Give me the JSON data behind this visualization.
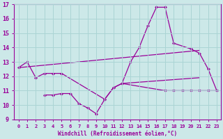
{
  "background_color": "#cce8e8",
  "line_color": "#990099",
  "grid_color": "#aad4d4",
  "xlabel": "Windchill (Refroidissement éolien,°C)",
  "ylim": [
    9,
    17
  ],
  "xlim": [
    -0.5,
    23.5
  ],
  "yticks": [
    9,
    10,
    11,
    12,
    13,
    14,
    15,
    16,
    17
  ],
  "xticks": [
    0,
    1,
    2,
    3,
    4,
    5,
    6,
    7,
    8,
    9,
    10,
    11,
    12,
    13,
    14,
    15,
    16,
    17,
    18,
    19,
    20,
    21,
    22,
    23
  ],
  "curve1_x": [
    0,
    1,
    2,
    3,
    4,
    5,
    10,
    11,
    12,
    13,
    14,
    15,
    16,
    17,
    18,
    20,
    21,
    22,
    23
  ],
  "curve1_y": [
    12.6,
    13.0,
    11.9,
    12.2,
    12.2,
    12.2,
    10.4,
    11.2,
    11.5,
    13.0,
    14.0,
    15.5,
    16.8,
    16.8,
    14.3,
    13.9,
    13.6,
    12.5,
    11.0
  ],
  "curve2_x": [
    3,
    4,
    5,
    6,
    7,
    8,
    9,
    10,
    11,
    12,
    17,
    18,
    19,
    20,
    21,
    22,
    23
  ],
  "curve2_y": [
    10.7,
    10.7,
    10.8,
    10.8,
    10.1,
    9.8,
    9.4,
    10.4,
    11.2,
    11.5,
    11.0,
    11.0,
    11.0,
    11.0,
    11.0,
    11.0,
    11.0
  ],
  "line1_x": [
    0,
    21
  ],
  "line1_y": [
    12.6,
    13.8
  ],
  "line2_x": [
    12,
    21
  ],
  "line2_y": [
    11.5,
    11.9
  ]
}
